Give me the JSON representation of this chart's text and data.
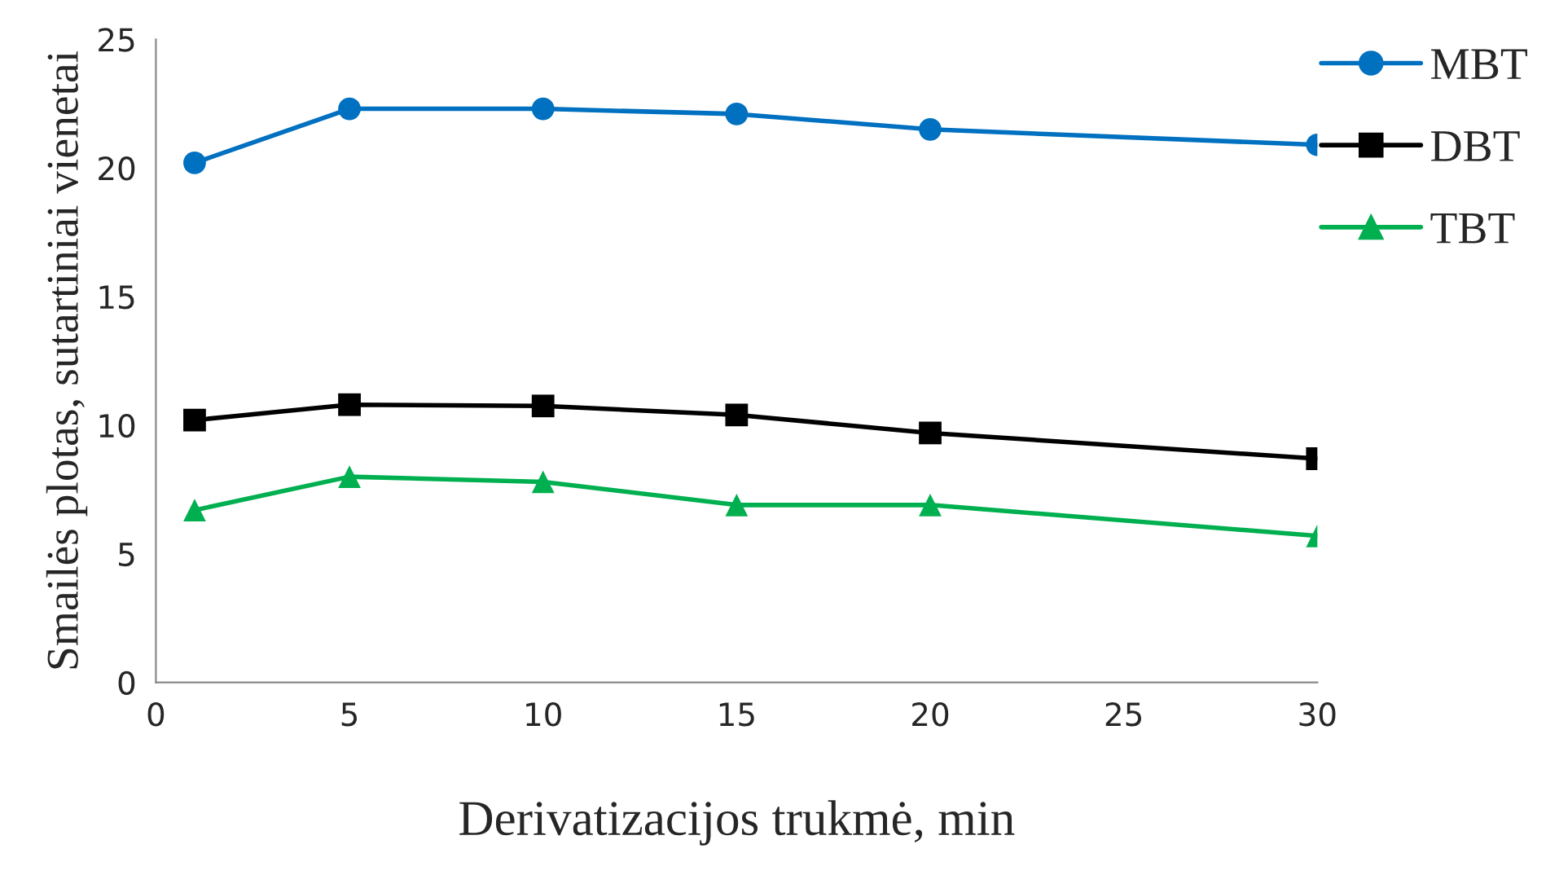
{
  "chart_data": {
    "type": "line",
    "xlabel": "Derivatizacijos trukmė, min",
    "ylabel": "Smailės plotas, sutartiniai vienetai",
    "x": [
      1,
      5,
      10,
      15,
      20,
      30
    ],
    "series": [
      {
        "name": "MBT",
        "color": "#0070c0",
        "marker": "circle",
        "values": [
          20.2,
          22.3,
          22.3,
          22.1,
          21.5,
          20.9
        ]
      },
      {
        "name": "DBT",
        "color": "#000000",
        "marker": "square",
        "values": [
          10.2,
          10.8,
          10.75,
          10.4,
          9.7,
          8.7
        ]
      },
      {
        "name": "TBT",
        "color": "#00b050",
        "marker": "triangle",
        "values": [
          6.7,
          8.0,
          7.8,
          6.9,
          6.9,
          5.7
        ]
      }
    ],
    "xlim": [
      0,
      30
    ],
    "xticks": [
      0,
      5,
      10,
      15,
      20,
      25,
      30
    ],
    "ylim": [
      0,
      25
    ],
    "yticks": [
      0,
      5,
      10,
      15,
      20,
      25
    ],
    "grid": false,
    "legend": "top right",
    "line_style": "solid"
  }
}
